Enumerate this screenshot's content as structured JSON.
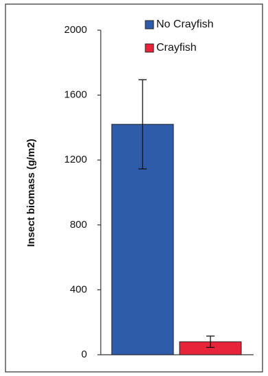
{
  "chart_data": {
    "type": "bar",
    "y_label": "Insect biomass (g/m2)",
    "categories": [
      null
    ],
    "series": [
      {
        "name": "No Crayfish",
        "color": "#2f5ca8",
        "values": [
          1420
        ],
        "errors": [
          275
        ]
      },
      {
        "name": "Crayfish",
        "color": "#e8243a",
        "values": [
          80
        ],
        "errors": [
          35
        ]
      }
    ],
    "ylim": [
      0,
      2000
    ],
    "yticks": [
      0,
      400,
      800,
      1200,
      1600,
      2000
    ]
  }
}
